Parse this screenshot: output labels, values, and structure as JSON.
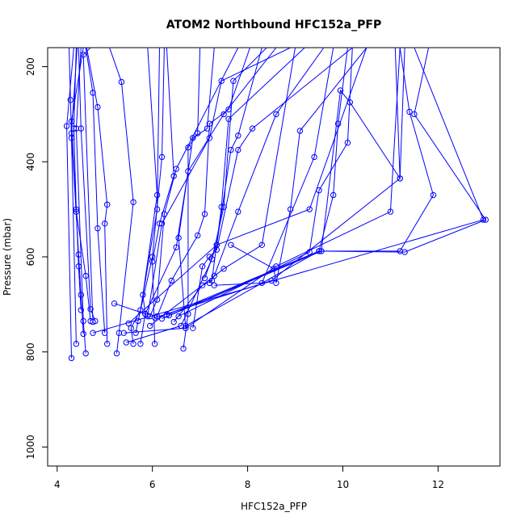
{
  "chart_data": {
    "type": "line",
    "title": "ATOM2 Northbound HFC152a_PFP",
    "xlabel": "HFC152a_PFP",
    "ylabel": "Pressure (mbar)",
    "xlim": [
      3.8,
      13.3
    ],
    "ylim": [
      1040,
      160
    ],
    "y_reversed": true,
    "x_ticks": [
      4,
      6,
      8,
      10,
      12
    ],
    "y_ticks": [
      200,
      400,
      600,
      800,
      1000
    ],
    "grid": false,
    "color": "#0000ff",
    "series": [
      {
        "points": [
          [
            4.3,
            813
          ],
          [
            4.2,
            325
          ],
          [
            4.35,
            160
          ]
        ]
      },
      {
        "points": [
          [
            4.4,
            783
          ],
          [
            4.3,
            350
          ],
          [
            4.28,
            270
          ],
          [
            4.25,
            160
          ]
        ]
      },
      {
        "points": [
          [
            4.5,
            712
          ],
          [
            4.45,
            620
          ],
          [
            4.4,
            500
          ],
          [
            4.35,
            330
          ],
          [
            4.4,
            160
          ]
        ]
      },
      {
        "points": [
          [
            4.55,
            762
          ],
          [
            4.5,
            680
          ],
          [
            4.45,
            595
          ],
          [
            4.3,
            340
          ],
          [
            4.42,
            160
          ]
        ]
      },
      {
        "points": [
          [
            4.6,
            803
          ],
          [
            4.55,
            735
          ],
          [
            4.4,
            330
          ],
          [
            4.5,
            160
          ]
        ]
      },
      {
        "points": [
          [
            4.7,
            735
          ],
          [
            4.6,
            640
          ],
          [
            4.4,
            505
          ],
          [
            4.3,
            315
          ],
          [
            4.55,
            160
          ]
        ]
      },
      {
        "points": [
          [
            4.75,
            737
          ],
          [
            4.55,
            175
          ],
          [
            4.7,
            160
          ]
        ]
      },
      {
        "points": [
          [
            4.8,
            735
          ],
          [
            4.7,
            710
          ],
          [
            4.5,
            330
          ],
          [
            4.45,
            160
          ]
        ]
      },
      {
        "points": [
          [
            5.0,
            760
          ],
          [
            4.85,
            540
          ],
          [
            4.75,
            255
          ],
          [
            4.6,
            160
          ]
        ]
      },
      {
        "points": [
          [
            5.05,
            783
          ],
          [
            5.0,
            530
          ],
          [
            5.05,
            490
          ],
          [
            4.85,
            285
          ],
          [
            4.62,
            160
          ]
        ]
      },
      {
        "points": [
          [
            5.25,
            803
          ],
          [
            5.3,
            760
          ],
          [
            5.6,
            485
          ],
          [
            5.35,
            232
          ],
          [
            5.1,
            160
          ]
        ]
      },
      {
        "points": [
          [
            5.6,
            783
          ],
          [
            5.55,
            750
          ],
          [
            5.75,
            712
          ],
          [
            6.1,
            500
          ],
          [
            6.15,
            160
          ]
        ]
      },
      {
        "points": [
          [
            5.65,
            760
          ],
          [
            5.7,
            735
          ],
          [
            6.0,
            600
          ],
          [
            6.2,
            390
          ],
          [
            6.25,
            160
          ]
        ]
      },
      {
        "points": [
          [
            5.75,
            783
          ],
          [
            5.85,
            720
          ],
          [
            5.8,
            680
          ],
          [
            6.1,
            470
          ],
          [
            5.9,
            160
          ]
        ]
      },
      {
        "points": [
          [
            6.05,
            783
          ],
          [
            6.0,
            610
          ],
          [
            6.15,
            530
          ],
          [
            6.45,
            430
          ],
          [
            6.3,
            160
          ]
        ]
      },
      {
        "points": [
          [
            6.65,
            793
          ],
          [
            6.75,
            720
          ],
          [
            6.75,
            370
          ],
          [
            6.95,
            340
          ],
          [
            7.0,
            160
          ]
        ]
      },
      {
        "points": [
          [
            6.7,
            750
          ],
          [
            6.55,
            560
          ],
          [
            6.85,
            350
          ],
          [
            7.15,
            330
          ],
          [
            7.3,
            160
          ]
        ]
      },
      {
        "points": [
          [
            5.95,
            725
          ],
          [
            6.1,
            690
          ],
          [
            6.25,
            510
          ],
          [
            6.5,
            415
          ],
          [
            7.8,
            160
          ]
        ]
      },
      {
        "points": [
          [
            5.2,
            698
          ],
          [
            5.85,
            720
          ],
          [
            6.5,
            580
          ],
          [
            6.75,
            420
          ],
          [
            7.5,
            300
          ],
          [
            8.6,
            160
          ]
        ]
      },
      {
        "points": [
          [
            5.9,
            725
          ],
          [
            6.2,
            530
          ],
          [
            7.2,
            350
          ],
          [
            7.45,
            230
          ],
          [
            8.9,
            160
          ]
        ]
      },
      {
        "points": [
          [
            6.1,
            725
          ],
          [
            6.4,
            650
          ],
          [
            6.95,
            555
          ],
          [
            7.1,
            510
          ],
          [
            7.2,
            320
          ],
          [
            7.6,
            290
          ],
          [
            8.05,
            160
          ]
        ]
      },
      {
        "points": [
          [
            6.45,
            737
          ],
          [
            7.05,
            660
          ],
          [
            7.25,
            650
          ],
          [
            7.45,
            495
          ],
          [
            7.6,
            310
          ],
          [
            9.2,
            160
          ]
        ]
      },
      {
        "points": [
          [
            6.85,
            750
          ],
          [
            7.05,
            620
          ],
          [
            7.2,
            600
          ],
          [
            7.35,
            585
          ],
          [
            7.8,
            375
          ],
          [
            8.1,
            330
          ],
          [
            10.2,
            160
          ]
        ]
      },
      {
        "points": [
          [
            7.1,
            645
          ],
          [
            7.35,
            575
          ],
          [
            7.65,
            375
          ],
          [
            7.8,
            345
          ],
          [
            8.3,
            160
          ]
        ]
      },
      {
        "points": [
          [
            7.2,
            655
          ],
          [
            7.3,
            640
          ],
          [
            7.8,
            505
          ],
          [
            8.6,
            300
          ],
          [
            9.6,
            160
          ]
        ]
      },
      {
        "points": [
          [
            7.3,
            660
          ],
          [
            8.3,
            655
          ],
          [
            9.4,
            390
          ],
          [
            9.8,
            160
          ]
        ]
      },
      {
        "points": [
          [
            7.65,
            575
          ],
          [
            8.55,
            625
          ],
          [
            8.6,
            655
          ],
          [
            8.9,
            500
          ],
          [
            9.1,
            335
          ],
          [
            10.5,
            160
          ]
        ]
      },
      {
        "points": [
          [
            6.3,
            722
          ],
          [
            9.5,
            588
          ],
          [
            9.8,
            470
          ],
          [
            9.9,
            320
          ],
          [
            10.1,
            160
          ]
        ]
      },
      {
        "points": [
          [
            6.55,
            725
          ],
          [
            9.3,
            590
          ],
          [
            9.5,
            460
          ],
          [
            10.1,
            360
          ],
          [
            10.2,
            160
          ]
        ]
      },
      {
        "points": [
          [
            6.35,
            723
          ],
          [
            9.5,
            588
          ],
          [
            11.2,
            588
          ],
          [
            11.9,
            470
          ],
          [
            11.4,
            295
          ],
          [
            11.2,
            160
          ]
        ]
      },
      {
        "points": [
          [
            6.2,
            730
          ],
          [
            9.55,
            588
          ],
          [
            9.95,
            250
          ],
          [
            10.15,
            275
          ],
          [
            11.2,
            435
          ],
          [
            11.1,
            160
          ]
        ]
      },
      {
        "points": [
          [
            6.05,
            728
          ],
          [
            8.5,
            650
          ],
          [
            11.2,
            435
          ],
          [
            11.3,
            160
          ]
        ]
      },
      {
        "points": [
          [
            6.7,
            745
          ],
          [
            9.5,
            588
          ],
          [
            11.3,
            590
          ],
          [
            13.0,
            522
          ],
          [
            11.5,
            300
          ],
          [
            11.8,
            160
          ]
        ]
      },
      {
        "points": [
          [
            5.4,
            760
          ],
          [
            6.7,
            750
          ],
          [
            8.6,
            620
          ],
          [
            11.0,
            505
          ],
          [
            11.2,
            160
          ]
        ]
      },
      {
        "points": [
          [
            4.75,
            760
          ],
          [
            12.95,
            522
          ],
          [
            11.5,
            160
          ]
        ]
      },
      {
        "points": [
          [
            5.5,
            740
          ],
          [
            7.35,
            575
          ],
          [
            9.3,
            500
          ],
          [
            10.5,
            160
          ]
        ]
      },
      {
        "points": [
          [
            5.95,
            745
          ],
          [
            7.5,
            625
          ],
          [
            8.3,
            575
          ],
          [
            9.0,
            160
          ]
        ]
      },
      {
        "points": [
          [
            5.45,
            780
          ],
          [
            6.6,
            745
          ],
          [
            7.25,
            605
          ],
          [
            7.5,
            495
          ],
          [
            7.7,
            230
          ],
          [
            8.4,
            160
          ]
        ]
      }
    ]
  }
}
